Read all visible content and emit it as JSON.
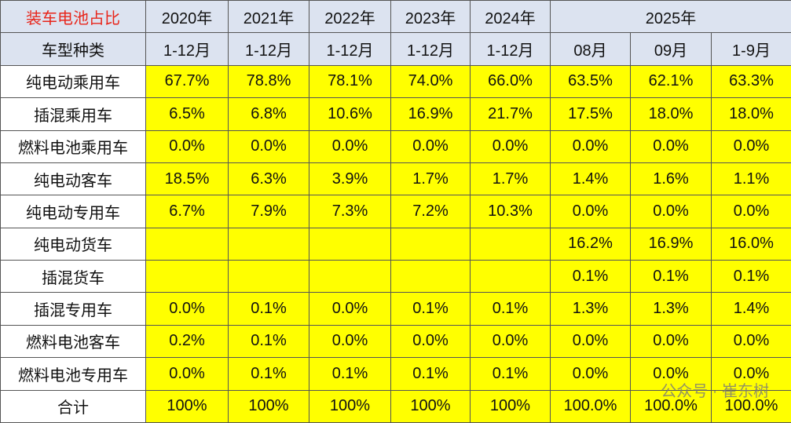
{
  "header": {
    "title": "装车电池占比",
    "subtitle": "车型种类",
    "years": [
      "2020年",
      "2021年",
      "2022年",
      "2023年",
      "2024年",
      "2025年"
    ],
    "periods": [
      "1-12月",
      "1-12月",
      "1-12月",
      "1-12月",
      "1-12月",
      "08月",
      "09月",
      "1-9月"
    ]
  },
  "rows": [
    {
      "name": "纯电动乘用车",
      "values": [
        "67.7%",
        "78.8%",
        "78.1%",
        "74.0%",
        "66.0%",
        "63.5%",
        "62.1%",
        "63.3%"
      ]
    },
    {
      "name": "插混乘用车",
      "values": [
        "6.5%",
        "6.8%",
        "10.6%",
        "16.9%",
        "21.7%",
        "17.5%",
        "18.0%",
        "18.0%"
      ]
    },
    {
      "name": "燃料电池乘用车",
      "values": [
        "0.0%",
        "0.0%",
        "0.0%",
        "0.0%",
        "0.0%",
        "0.0%",
        "0.0%",
        "0.0%"
      ]
    },
    {
      "name": "纯电动客车",
      "values": [
        "18.5%",
        "6.3%",
        "3.9%",
        "1.7%",
        "1.7%",
        "1.4%",
        "1.6%",
        "1.1%"
      ]
    },
    {
      "name": "纯电动专用车",
      "values": [
        "6.7%",
        "7.9%",
        "7.3%",
        "7.2%",
        "10.3%",
        "0.0%",
        "0.0%",
        "0.0%"
      ]
    },
    {
      "name": "纯电动货车",
      "values": [
        null,
        null,
        null,
        null,
        null,
        "16.2%",
        "16.9%",
        "16.0%"
      ]
    },
    {
      "name": "插混货车",
      "values": [
        null,
        null,
        null,
        null,
        null,
        "0.1%",
        "0.1%",
        "0.1%"
      ]
    },
    {
      "name": "插混专用车",
      "values": [
        "0.0%",
        "0.1%",
        "0.0%",
        "0.1%",
        "0.1%",
        "1.3%",
        "1.3%",
        "1.4%"
      ]
    },
    {
      "name": "燃料电池客车",
      "values": [
        "0.2%",
        "0.1%",
        "0.0%",
        "0.0%",
        "0.0%",
        "0.0%",
        "0.0%",
        "0.0%"
      ]
    },
    {
      "name": "燃料电池专用车",
      "values": [
        "0.0%",
        "0.1%",
        "0.1%",
        "0.1%",
        "0.1%",
        "0.0%",
        "0.0%",
        "0.0%"
      ]
    },
    {
      "name": "合计",
      "values": [
        "100%",
        "100%",
        "100%",
        "100%",
        "100%",
        "100.0%",
        "100.0%",
        "100.0%"
      ]
    }
  ],
  "watermark": "公众号 · 崔东树"
}
